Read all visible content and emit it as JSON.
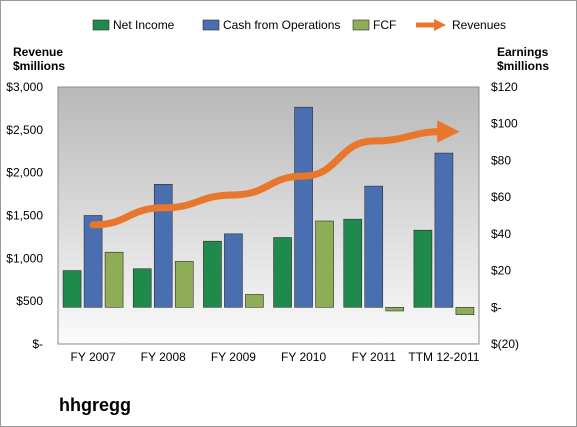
{
  "company": "hhgregg",
  "colors": {
    "net_income": "#1f8a4c",
    "cash_from_operations": "#4a6fb0",
    "fcf": "#8fac57",
    "revenues": "#e8772c"
  },
  "chart_data": {
    "type": "bar",
    "combo": "clustered bars on right axis with revenue line on left axis",
    "categories": [
      "FY 2007",
      "FY 2008",
      "FY 2009",
      "FY 2010",
      "FY 2011",
      "TTM 12-2011"
    ],
    "series": [
      {
        "name": "Net Income",
        "axis": "right",
        "type": "bar",
        "values": [
          20,
          21,
          36,
          38,
          48,
          42
        ]
      },
      {
        "name": "Cash from Operations",
        "axis": "right",
        "type": "bar",
        "values": [
          50,
          67,
          40,
          109,
          66,
          84
        ]
      },
      {
        "name": "FCF",
        "axis": "right",
        "type": "bar",
        "values": [
          30,
          25,
          7,
          47,
          -2,
          -4
        ]
      },
      {
        "name": "Revenues",
        "axis": "left",
        "type": "line",
        "values": [
          1390,
          1590,
          1740,
          1960,
          2370,
          2480
        ]
      }
    ],
    "ylabel_left": [
      "Revenue",
      "$millions"
    ],
    "ylabel_right": [
      "Earnings",
      "$millions"
    ],
    "ylim_left": [
      0,
      3000
    ],
    "ylim_right": [
      -20,
      120
    ],
    "yticks_left": [
      "$-",
      "$500",
      "$1,000",
      "$1,500",
      "$2,000",
      "$2,500",
      "$3,000"
    ],
    "yticks_right": [
      "$(20)",
      "$-",
      "$20",
      "$40",
      "$60",
      "$80",
      "$100",
      "$120"
    ],
    "legend": [
      "Net Income",
      "Cash from Operations",
      "FCF",
      "Revenues"
    ],
    "legend_position": "top",
    "grid": false
  }
}
